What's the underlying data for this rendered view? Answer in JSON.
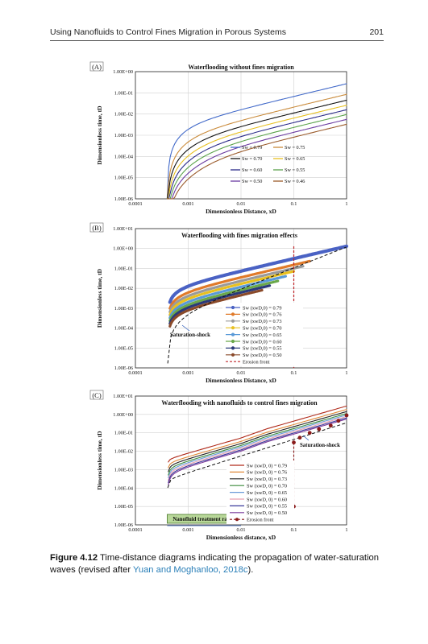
{
  "header": {
    "title": "Using Nanofluids to Control Fines Migration in Porous Systems",
    "page": "201"
  },
  "caption": {
    "label": "Figure 4.12",
    "text": "Time-distance diagrams indicating the propagation of water-saturation waves (revised after ",
    "cite": "Yuan and Moghanloo, 2018c",
    "end": ")."
  },
  "chart_data": [
    {
      "panel": "(A)",
      "type": "line",
      "title": "Waterflooding without fines migration",
      "xlabel": "Dimensionless Distance, xD",
      "ylabel": "Dimensionless time, tD",
      "xscale": "log",
      "yscale": "log",
      "xlim": [
        0.0001,
        1
      ],
      "ylim": [
        1e-06,
        1
      ],
      "xticks": [
        "0.0001",
        "0.001",
        "0.01",
        "0.1",
        "1"
      ],
      "yticks": [
        "1.00E-06",
        "1.00E-05",
        "1.00E-04",
        "1.00E-03",
        "1.00E-02",
        "1.00E-01",
        "1.00E+00"
      ],
      "grid": true,
      "legend_position": "bottom-right",
      "series": [
        {
          "name": "Sw = 0.79",
          "color": "#4169c9",
          "x0": 0.0004,
          "k": 0.27
        },
        {
          "name": "Sw = 0.75",
          "color": "#c98a3a",
          "x0": 0.0004,
          "k": 0.085
        },
        {
          "name": "Sw = 0.70",
          "color": "#111111",
          "x0": 0.0004,
          "k": 0.045
        },
        {
          "name": "Sw = 0.65",
          "color": "#e8c020",
          "x0": 0.0004,
          "k": 0.026
        },
        {
          "name": "Sw = 0.60",
          "color": "#2a2a88",
          "x0": 0.0004,
          "k": 0.016
        },
        {
          "name": "Sw = 0.55",
          "color": "#5aa24a",
          "x0": 0.0004,
          "k": 0.0095
        },
        {
          "name": "Sw = 0.50",
          "color": "#6a3aa0",
          "x0": 0.0004,
          "k": 0.0056
        },
        {
          "name": "Sw = 0.46",
          "color": "#9a5a2a",
          "x0": 0.0004,
          "k": 0.0033
        }
      ]
    },
    {
      "panel": "(B)",
      "type": "line",
      "title": "Waterflooding with fines migration effects",
      "xlabel": "Dimensionless Distance, xD",
      "ylabel": "Dimensionless time, tD",
      "xscale": "log",
      "yscale": "log",
      "xlim": [
        0.0001,
        1
      ],
      "ylim": [
        1e-06,
        10
      ],
      "xticks": [
        "0.0001",
        "0.001",
        "0.01",
        "0.1",
        "1"
      ],
      "yticks": [
        "1.00E-06",
        "1.00E-05",
        "1.00E-04",
        "1.00E-03",
        "1.00E-02",
        "1.00E-01",
        "1.00E+00",
        "1.00E+01"
      ],
      "grid": true,
      "legend_position": "bottom-right",
      "annotation": "Saturation-shock",
      "series": [
        {
          "name": "Sw (xwD,0) = 0.79",
          "color": "#4a62c4",
          "k": 1.3,
          "xmax": 1
        },
        {
          "name": "Sw (xwD,0) = 0.76",
          "color": "#e07a2a",
          "k": 0.63,
          "xmax": 0.2
        },
        {
          "name": "Sw (xwD,0) = 0.73",
          "color": "#9a9a9a",
          "k": 0.42,
          "xmax": 0.15
        },
        {
          "name": "Sw (xwD,0) = 0.70",
          "color": "#e8c020",
          "k": 0.3,
          "xmax": 0.1
        },
        {
          "name": "Sw (xwD,0) = 0.65",
          "color": "#5a9ad8",
          "k": 0.21,
          "xmax": 0.07
        },
        {
          "name": "Sw (xwD,0) = 0.60",
          "color": "#6aa84a",
          "k": 0.15,
          "xmax": 0.05
        },
        {
          "name": "Sw (xwD,0) = 0.55",
          "color": "#2a3a7a",
          "k": 0.11,
          "xmax": 0.035
        },
        {
          "name": "Sw (xwD,0) = 0.50",
          "color": "#8a4a2a",
          "k": 0.08,
          "xmax": 0.025
        },
        {
          "name": "Erosion front",
          "color": "#c0262a",
          "dashed": true,
          "x": 0.1
        }
      ]
    },
    {
      "panel": "(C)",
      "type": "line",
      "title": "Waterflooding with nanofluids to control fines migration",
      "xlabel": "Dimensionless distance, xD",
      "ylabel": "Dimensionless time, tD",
      "xscale": "log",
      "yscale": "log",
      "xlim": [
        0.0001,
        1
      ],
      "ylim": [
        1e-06,
        10
      ],
      "xticks": [
        "0.0001",
        "0.001",
        "0.01",
        "0.1",
        "1"
      ],
      "yticks": [
        "1.00E-06",
        "1.00E-05",
        "1.00E-04",
        "1.00E-03",
        "1.00E-02",
        "1.00E-01",
        "1.00E+00",
        "1.00E+01"
      ],
      "grid": true,
      "legend_position": "bottom-right",
      "annotation": "Saturation-shock",
      "range_label": "Nanofluid treatment range",
      "range_x": [
        0.0004,
        0.01
      ],
      "series": [
        {
          "name": "Sw (xwD, 0) = 0.79",
          "color": "#b02a1a",
          "k": 2.3
        },
        {
          "name": "Sw (xwD, 0) = 0.76",
          "color": "#e08a3a",
          "k": 1.5
        },
        {
          "name": "Sw (xwD, 0) = 0.73",
          "color": "#222222",
          "k": 1.15
        },
        {
          "name": "Sw (xwD, 0) = 0.70",
          "color": "#3a8a3a",
          "k": 0.9
        },
        {
          "name": "Sw (xwD, 0) = 0.65",
          "color": "#6a9ad8",
          "k": 0.75
        },
        {
          "name": "Sw (xwD, 0) = 0.60",
          "color": "#e8a0b0",
          "k": 0.62
        },
        {
          "name": "Sw (xwD, 0) = 0.55",
          "color": "#3a3a9a",
          "k": 0.52
        },
        {
          "name": "Sw (xwD, 0) = 0.50",
          "color": "#7a3a9a",
          "k": 0.45
        },
        {
          "name": "Erosion front",
          "color": "#8a1a1a",
          "dashed": true,
          "x": 0.1
        }
      ]
    }
  ]
}
